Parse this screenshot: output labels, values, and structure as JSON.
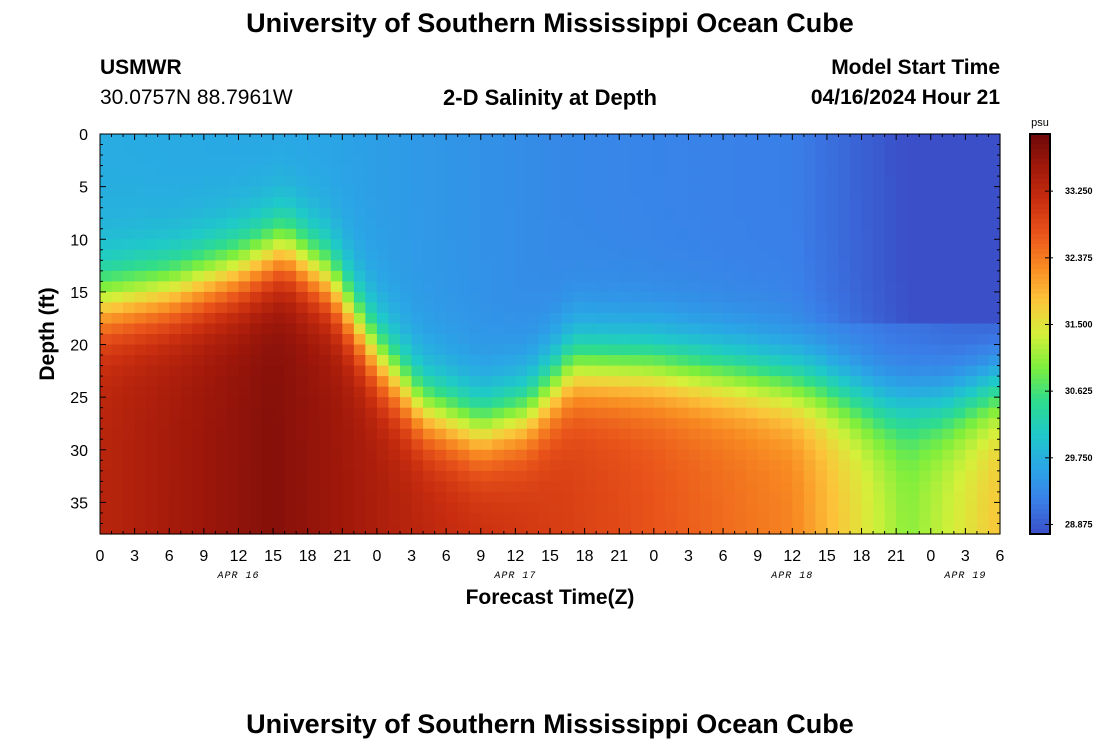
{
  "page": {
    "title": "University of Southern Mississippi Ocean Cube",
    "footer_title": "University of Southern Mississippi Ocean Cube",
    "station_id": "USMWR",
    "station_coords": "30.0757N  88.7961W",
    "subtitle": "2-D Salinity at Depth",
    "model_label": "Model Start Time",
    "model_time": "04/16/2024 Hour 21"
  },
  "chart_data": {
    "type": "heatmap",
    "title": "2-D Salinity at Depth",
    "xlabel": "Forecast Time(Z)",
    "ylabel": "Depth (ft)",
    "x_ticks": [
      "0",
      "3",
      "6",
      "9",
      "12",
      "15",
      "18",
      "21",
      "0",
      "3",
      "6",
      "9",
      "12",
      "15",
      "18",
      "21",
      "0",
      "3",
      "6",
      "9",
      "12",
      "15",
      "18",
      "21",
      "0",
      "3",
      "6"
    ],
    "x_range_hours": [
      0,
      78
    ],
    "date_labels": [
      {
        "label": "APR 16",
        "hour": 12
      },
      {
        "label": "APR 17",
        "hour": 36
      },
      {
        "label": "APR 18",
        "hour": 60
      },
      {
        "label": "APR 19",
        "hour": 75
      }
    ],
    "y_ticks": [
      "0",
      "5",
      "10",
      "15",
      "20",
      "25",
      "30",
      "35"
    ],
    "y_tick_values": [
      0,
      5,
      10,
      15,
      20,
      25,
      30,
      35
    ],
    "ylim": [
      0,
      38
    ],
    "colorbar": {
      "unit": "psu",
      "ticks": [
        "33.250",
        "32.375",
        "31.500",
        "30.625",
        "29.750",
        "28.875"
      ],
      "tick_values": [
        33.25,
        32.375,
        31.5,
        30.625,
        29.75,
        28.875
      ],
      "range": [
        28.75,
        34.0
      ],
      "colors": [
        "#3a4fc8",
        "#3a7ee8",
        "#2aa6e6",
        "#1fc9c9",
        "#2fdc8c",
        "#7eee3c",
        "#d4f03a",
        "#fcc43a",
        "#f88a22",
        "#e9541a",
        "#c92e0f",
        "#a0180a",
        "#6e0909"
      ]
    },
    "interface_depth_ft": [
      {
        "hour": 0,
        "depth": 16
      },
      {
        "hour": 6,
        "depth": 15
      },
      {
        "hour": 12,
        "depth": 13
      },
      {
        "hour": 16,
        "depth": 11
      },
      {
        "hour": 20,
        "depth": 14
      },
      {
        "hour": 24,
        "depth": 21
      },
      {
        "hour": 28,
        "depth": 26
      },
      {
        "hour": 33,
        "depth": 28
      },
      {
        "hour": 37,
        "depth": 26.5
      },
      {
        "hour": 41,
        "depth": 22
      },
      {
        "hour": 48,
        "depth": 22
      },
      {
        "hour": 56,
        "depth": 23
      },
      {
        "hour": 62,
        "depth": 24
      },
      {
        "hour": 68,
        "depth": 26
      },
      {
        "hour": 73,
        "depth": 26
      },
      {
        "hour": 78,
        "depth": 24
      }
    ],
    "surface_salinity_psu": [
      {
        "hour": 0,
        "value": 29.7
      },
      {
        "hour": 20,
        "value": 29.6
      },
      {
        "hour": 40,
        "value": 29.3
      },
      {
        "hour": 60,
        "value": 29.2
      },
      {
        "hour": 72,
        "value": 29.0
      },
      {
        "hour": 78,
        "value": 28.8
      }
    ],
    "bottom_salinity_psu": [
      {
        "hour": 0,
        "value": 33.3
      },
      {
        "hour": 15,
        "value": 33.8
      },
      {
        "hour": 30,
        "value": 33.2
      },
      {
        "hour": 45,
        "value": 32.8
      },
      {
        "hour": 60,
        "value": 32.3
      },
      {
        "hour": 70,
        "value": 31.0
      },
      {
        "hour": 78,
        "value": 31.8
      }
    ]
  }
}
